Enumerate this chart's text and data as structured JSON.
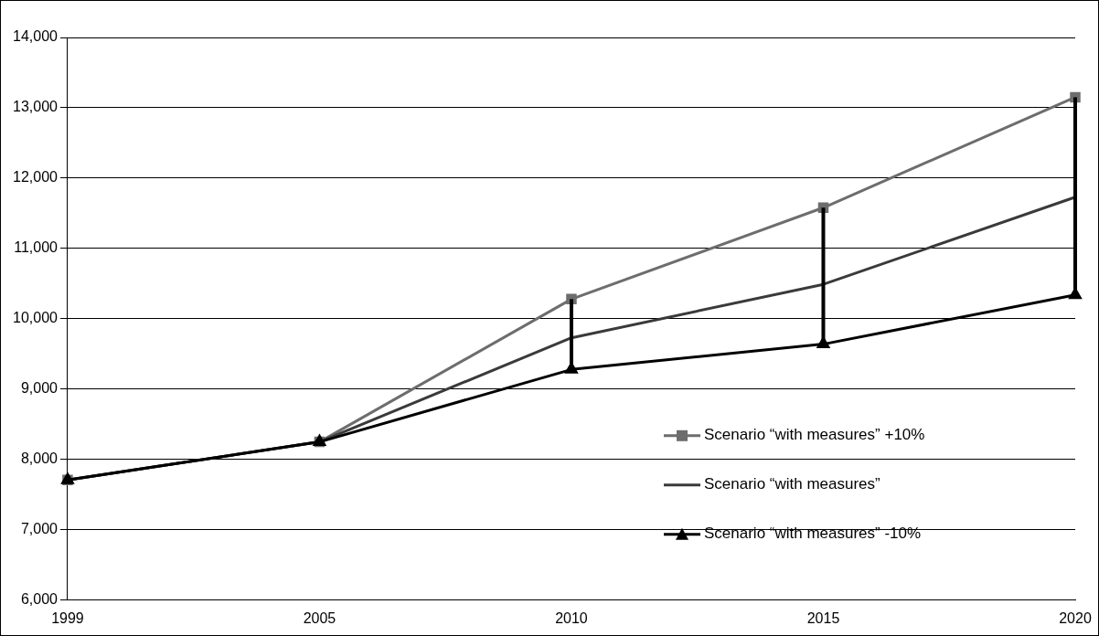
{
  "chart_data": {
    "type": "line",
    "categories": [
      "1999",
      "2005",
      "2010",
      "2015",
      "2020"
    ],
    "series": [
      {
        "name": "Scenario “with measures” +10%",
        "color": "#6d6d6d",
        "marker": "square",
        "values": [
          7710,
          8250,
          10280,
          11580,
          13150
        ]
      },
      {
        "name": "Scenario “with measures”",
        "color": "#3a3a3a",
        "marker": "none",
        "values": [
          7710,
          8250,
          9730,
          10490,
          11730
        ]
      },
      {
        "name": "Scenario “with measures” -10%",
        "color": "#000000",
        "marker": "triangle",
        "values": [
          7710,
          8250,
          9280,
          9640,
          10340
        ],
        "errors": [
          null,
          null,
          [
            9280,
            10280
          ],
          [
            9640,
            11580
          ],
          [
            10340,
            13150
          ]
        ]
      }
    ],
    "ylim": [
      6000,
      14000
    ],
    "yticks": [
      {
        "value": 6000,
        "label": "6,000"
      },
      {
        "value": 7000,
        "label": "7,000"
      },
      {
        "value": 8000,
        "label": "8,000"
      },
      {
        "value": 9000,
        "label": "9,000"
      },
      {
        "value": 10000,
        "label": "10,000"
      },
      {
        "value": 11000,
        "label": "11,000"
      },
      {
        "value": 12000,
        "label": "12,000"
      },
      {
        "value": 13000,
        "label": "13,000"
      },
      {
        "value": 14000,
        "label": "14,000"
      }
    ],
    "grid": "y",
    "legend": "bottom right"
  }
}
